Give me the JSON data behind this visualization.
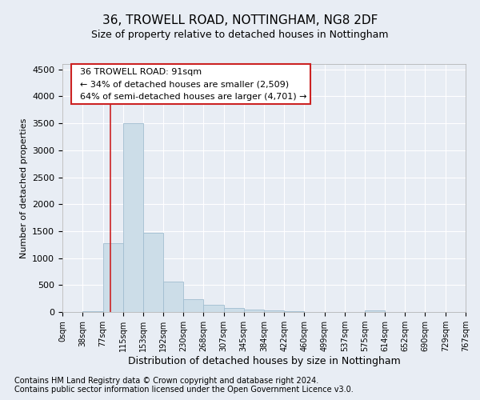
{
  "title1": "36, TROWELL ROAD, NOTTINGHAM, NG8 2DF",
  "title2": "Size of property relative to detached houses in Nottingham",
  "xlabel": "Distribution of detached houses by size in Nottingham",
  "ylabel": "Number of detached properties",
  "footer1": "Contains HM Land Registry data © Crown copyright and database right 2024.",
  "footer2": "Contains public sector information licensed under the Open Government Licence v3.0.",
  "annotation_line1": "36 TROWELL ROAD: 91sqm",
  "annotation_line2": "← 34% of detached houses are smaller (2,509)",
  "annotation_line3": "64% of semi-detached houses are larger (4,701) →",
  "bar_edges": [
    0,
    38,
    77,
    115,
    153,
    192,
    230,
    268,
    307,
    345,
    384,
    422,
    460,
    499,
    537,
    575,
    614,
    652,
    690,
    729,
    767
  ],
  "bar_heights": [
    5,
    10,
    1280,
    3500,
    1470,
    570,
    240,
    130,
    75,
    50,
    25,
    8,
    5,
    3,
    2,
    28,
    2,
    1,
    1,
    1
  ],
  "bar_color": "#ccdde8",
  "bar_edge_color": "#a0bdd0",
  "red_line_x": 91,
  "ylim": [
    0,
    4600
  ],
  "yticks": [
    0,
    500,
    1000,
    1500,
    2000,
    2500,
    3000,
    3500,
    4000,
    4500
  ],
  "xlim": [
    0,
    767
  ],
  "bg_color": "#e8edf4",
  "plot_bg_color": "#e8edf4",
  "annotation_box_facecolor": "#ffffff",
  "annotation_box_edgecolor": "#cc2222",
  "red_line_color": "#cc2222",
  "title1_fontsize": 11,
  "title2_fontsize": 9,
  "ylabel_fontsize": 8,
  "xlabel_fontsize": 9,
  "tick_fontsize": 8,
  "xtick_fontsize": 7,
  "footer_fontsize": 7
}
